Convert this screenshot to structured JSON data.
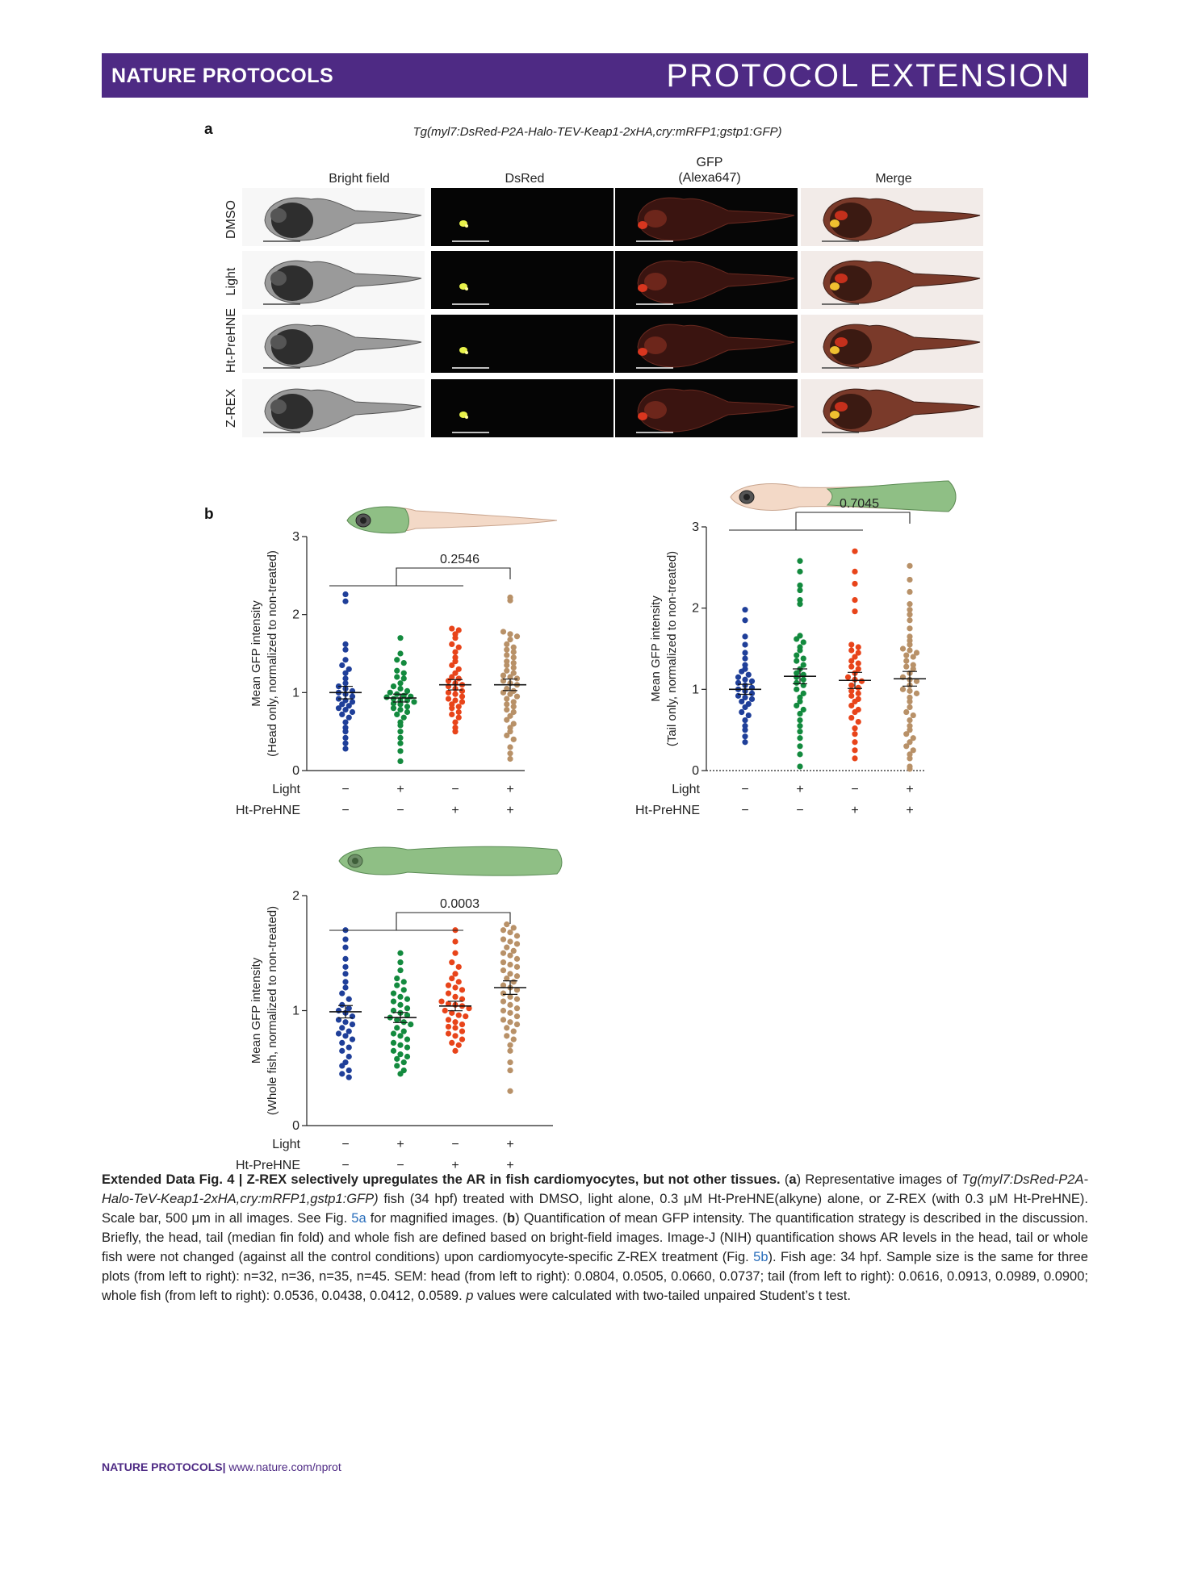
{
  "header": {
    "journal": "NATURE PROTOCOLS",
    "article_type": "PROTOCOL EXTENSION"
  },
  "panel_a": {
    "letter": "a",
    "genotype": "Tg(myl7:DsRed-P2A-Halo-TEV-Keap1-2xHA,cry:mRFP1;gstp1:GFP)",
    "columns": [
      "Bright field",
      "DsRed",
      "GFP\n(Alexa647)",
      "Merge"
    ],
    "rows": [
      "DMSO",
      "Light",
      "Ht-PreHNE",
      "Z-REX"
    ]
  },
  "panel_b": {
    "letter": "b"
  },
  "chart_data": [
    {
      "type": "scatter",
      "ylabel": "Mean GFP intensity\n(Head only, normalized to non-treated)",
      "ylim": [
        0,
        3
      ],
      "yticks": [
        0,
        1,
        2,
        3
      ],
      "condition_rows": [
        {
          "label": "Light",
          "values": [
            "−",
            "+",
            "−",
            "+"
          ]
        },
        {
          "label": "Ht-PreHNE",
          "values": [
            "−",
            "−",
            "+",
            "+"
          ]
        }
      ],
      "p_value": "0.2546",
      "series": [
        {
          "color": "#1f3f99",
          "mean": 1.0,
          "sem": 0.0804,
          "values": [
            2.26,
            2.17,
            1.62,
            1.55,
            1.42,
            1.35,
            1.3,
            1.25,
            1.18,
            1.12,
            1.08,
            1.05,
            1.02,
            1.0,
            0.98,
            0.95,
            0.92,
            0.9,
            0.88,
            0.85,
            0.83,
            0.8,
            0.78,
            0.75,
            0.72,
            0.68,
            0.62,
            0.55,
            0.5,
            0.42,
            0.35,
            0.28
          ]
        },
        {
          "color": "#138a3e",
          "mean": 0.93,
          "sem": 0.0505,
          "values": [
            1.7,
            1.5,
            1.42,
            1.38,
            1.28,
            1.25,
            1.2,
            1.18,
            1.12,
            1.08,
            1.05,
            1.02,
            1.0,
            0.98,
            0.96,
            0.95,
            0.94,
            0.92,
            0.9,
            0.9,
            0.88,
            0.86,
            0.85,
            0.82,
            0.8,
            0.78,
            0.75,
            0.72,
            0.68,
            0.62,
            0.58,
            0.5,
            0.42,
            0.35,
            0.25,
            0.12
          ]
        },
        {
          "color": "#e8441a",
          "mean": 1.1,
          "sem": 0.066,
          "values": [
            1.82,
            1.8,
            1.75,
            1.7,
            1.62,
            1.58,
            1.52,
            1.45,
            1.4,
            1.35,
            1.3,
            1.25,
            1.2,
            1.18,
            1.15,
            1.12,
            1.1,
            1.08,
            1.05,
            1.02,
            1.0,
            0.98,
            0.95,
            0.92,
            0.9,
            0.88,
            0.85,
            0.82,
            0.8,
            0.75,
            0.72,
            0.68,
            0.62,
            0.55,
            0.5
          ]
        },
        {
          "color": "#b89168",
          "mean": 1.1,
          "sem": 0.0737,
          "values": [
            2.22,
            2.18,
            1.78,
            1.75,
            1.72,
            1.68,
            1.62,
            1.58,
            1.55,
            1.52,
            1.48,
            1.45,
            1.4,
            1.38,
            1.35,
            1.32,
            1.28,
            1.25,
            1.22,
            1.2,
            1.18,
            1.15,
            1.12,
            1.1,
            1.05,
            1.02,
            1.0,
            0.98,
            0.95,
            0.92,
            0.88,
            0.85,
            0.82,
            0.78,
            0.75,
            0.7,
            0.65,
            0.6,
            0.55,
            0.5,
            0.45,
            0.4,
            0.3,
            0.22,
            0.15
          ]
        }
      ]
    },
    {
      "type": "scatter",
      "ylabel": "Mean GFP intensity\n(Tail only, normalized to non-treated)",
      "ylim": [
        0,
        3
      ],
      "yticks": [
        0,
        1,
        2,
        3
      ],
      "condition_rows": [
        {
          "label": "Light",
          "values": [
            "−",
            "+",
            "−",
            "+"
          ]
        },
        {
          "label": "Ht-PreHNE",
          "values": [
            "−",
            "−",
            "+",
            "+"
          ]
        }
      ],
      "p_value": "0.7045",
      "series": [
        {
          "color": "#1f3f99",
          "mean": 1.0,
          "sem": 0.0616,
          "values": [
            1.98,
            1.85,
            1.65,
            1.55,
            1.45,
            1.38,
            1.3,
            1.25,
            1.22,
            1.18,
            1.15,
            1.12,
            1.1,
            1.08,
            1.05,
            1.02,
            1.0,
            0.98,
            0.95,
            0.92,
            0.9,
            0.88,
            0.85,
            0.82,
            0.78,
            0.72,
            0.68,
            0.62,
            0.55,
            0.5,
            0.42,
            0.35
          ]
        },
        {
          "color": "#138a3e",
          "mean": 1.16,
          "sem": 0.0913,
          "values": [
            2.58,
            2.45,
            2.28,
            2.22,
            2.1,
            2.05,
            1.66,
            1.62,
            1.58,
            1.52,
            1.48,
            1.42,
            1.38,
            1.35,
            1.3,
            1.25,
            1.2,
            1.18,
            1.15,
            1.12,
            1.08,
            1.05,
            1.0,
            0.95,
            0.9,
            0.85,
            0.8,
            0.75,
            0.7,
            0.62,
            0.55,
            0.48,
            0.4,
            0.3,
            0.2,
            0.05
          ]
        },
        {
          "color": "#e8441a",
          "mean": 1.11,
          "sem": 0.0989,
          "values": [
            2.7,
            2.45,
            2.3,
            2.1,
            1.96,
            1.55,
            1.52,
            1.48,
            1.45,
            1.4,
            1.35,
            1.32,
            1.28,
            1.25,
            1.2,
            1.15,
            1.12,
            1.1,
            1.05,
            1.02,
            0.98,
            0.95,
            0.92,
            0.88,
            0.85,
            0.8,
            0.75,
            0.72,
            0.65,
            0.6,
            0.52,
            0.45,
            0.35,
            0.25,
            0.15
          ]
        },
        {
          "color": "#b89168",
          "mean": 1.13,
          "sem": 0.09,
          "values": [
            2.52,
            2.35,
            2.2,
            2.05,
            1.98,
            1.92,
            1.85,
            1.75,
            1.65,
            1.6,
            1.55,
            1.5,
            1.48,
            1.45,
            1.42,
            1.4,
            1.35,
            1.3,
            1.28,
            1.25,
            1.2,
            1.15,
            1.12,
            1.1,
            1.05,
            1.0,
            0.98,
            0.95,
            0.9,
            0.85,
            0.78,
            0.72,
            0.68,
            0.62,
            0.55,
            0.5,
            0.45,
            0.4,
            0.35,
            0.3,
            0.25,
            0.2,
            0.15,
            0.05,
            0.02
          ]
        }
      ]
    },
    {
      "type": "scatter",
      "ylabel": "Mean GFP intensity\n(Whole fish, normalized to non-treated)",
      "ylim": [
        0,
        2
      ],
      "yticks": [
        0,
        1,
        2
      ],
      "condition_rows": [
        {
          "label": "Light",
          "values": [
            "−",
            "+",
            "−",
            "+"
          ]
        },
        {
          "label": "Ht-PreHNE",
          "values": [
            "−",
            "−",
            "+",
            "+"
          ]
        }
      ],
      "p_value": "0.0003",
      "series": [
        {
          "color": "#1f3f99",
          "mean": 0.99,
          "sem": 0.0536,
          "values": [
            1.7,
            1.62,
            1.55,
            1.45,
            1.38,
            1.32,
            1.25,
            1.2,
            1.15,
            1.1,
            1.05,
            1.02,
            1.0,
            0.98,
            0.95,
            0.92,
            0.9,
            0.88,
            0.85,
            0.82,
            0.8,
            0.78,
            0.75,
            0.72,
            0.68,
            0.65,
            0.6,
            0.55,
            0.52,
            0.48,
            0.45,
            0.42
          ]
        },
        {
          "color": "#138a3e",
          "mean": 0.94,
          "sem": 0.0438,
          "values": [
            1.5,
            1.42,
            1.35,
            1.28,
            1.25,
            1.22,
            1.18,
            1.15,
            1.12,
            1.1,
            1.08,
            1.05,
            1.02,
            1.0,
            0.98,
            0.96,
            0.94,
            0.92,
            0.9,
            0.88,
            0.85,
            0.82,
            0.8,
            0.78,
            0.75,
            0.72,
            0.7,
            0.68,
            0.65,
            0.62,
            0.6,
            0.58,
            0.55,
            0.52,
            0.48,
            0.45
          ]
        },
        {
          "color": "#e8441a",
          "mean": 1.04,
          "sem": 0.0412,
          "values": [
            1.7,
            1.6,
            1.5,
            1.42,
            1.38,
            1.32,
            1.28,
            1.25,
            1.22,
            1.2,
            1.18,
            1.15,
            1.12,
            1.1,
            1.08,
            1.06,
            1.05,
            1.04,
            1.02,
            1.0,
            0.98,
            0.96,
            0.95,
            0.92,
            0.9,
            0.88,
            0.86,
            0.85,
            0.82,
            0.8,
            0.78,
            0.75,
            0.72,
            0.7,
            0.65
          ]
        },
        {
          "color": "#b89168",
          "mean": 1.2,
          "sem": 0.0589,
          "values": [
            1.75,
            1.72,
            1.7,
            1.68,
            1.65,
            1.62,
            1.6,
            1.58,
            1.55,
            1.52,
            1.5,
            1.48,
            1.45,
            1.42,
            1.4,
            1.38,
            1.35,
            1.32,
            1.3,
            1.28,
            1.25,
            1.22,
            1.2,
            1.18,
            1.15,
            1.12,
            1.1,
            1.08,
            1.05,
            1.02,
            1.0,
            0.98,
            0.95,
            0.92,
            0.9,
            0.88,
            0.85,
            0.82,
            0.78,
            0.75,
            0.7,
            0.65,
            0.55,
            0.48,
            0.3
          ]
        }
      ]
    }
  ],
  "caption": {
    "title": "Extended Data Fig. 4 | Z-REX selectively upregulates the AR in fish cardiomyocytes, but not other tissues.",
    "a_label": "a",
    "a_text_1": " Representative images of ",
    "genotype_italic": "Tg(myl7:DsRed-P2A-Halo-TeV-Keap1-2xHA,cry:mRFP1,gstp1:GFP)",
    "a_text_2": " fish (34 hpf) treated with DMSO, light alone, 0.3 μM Ht-PreHNE(alkyne) alone, or Z-REX (with 0.3 μM Ht-PreHNE). Scale bar, 500 μm in all images. See Fig. ",
    "link_5a": "5a",
    "a_text_3": " for magnified images. (",
    "b_label": "b",
    "b_text_1": ") Quantification of mean GFP intensity. The quantification strategy is described in the discussion. Briefly, the head, tail (median fin fold) and whole fish are defined based on bright-field images. Image-J (NIH) quantification shows AR levels in the head, tail or whole fish were not changed (against all the control conditions) upon cardiomyocyte-specific Z-REX treatment (Fig. ",
    "link_5b": "5b",
    "b_text_2": "). Fish age: 34 hpf. Sample size is the same for three plots (from left to right): n=32, n=36, n=35, n=45. SEM: head (from left to right): 0.0804, 0.0505, 0.0660, 0.0737; tail (from left to right): 0.0616, 0.0913, 0.0989, 0.0900; whole fish (from left to right): 0.0536, 0.0438, 0.0412, 0.0589. ",
    "p_italic": "p",
    "b_text_3": " values were calculated with two-tailed unpaired Student’s t test."
  },
  "footer": {
    "journal": "NATURE PROTOCOLS",
    "separator": "|",
    "url": "www.nature.com/nprot"
  }
}
